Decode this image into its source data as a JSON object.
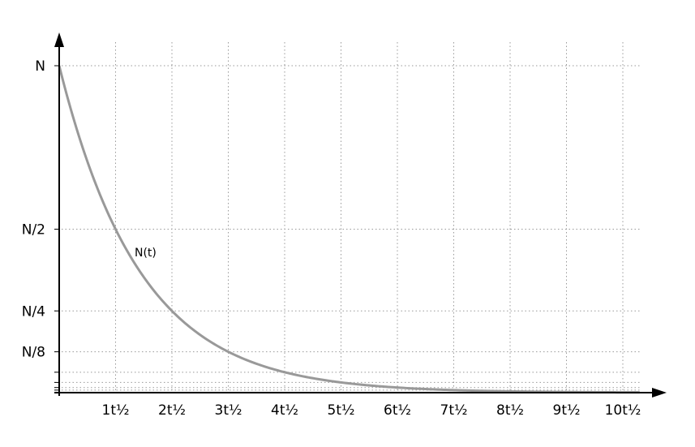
{
  "chart_data": {
    "type": "line",
    "series": [
      {
        "name": "N(t)",
        "x": [
          0,
          1,
          2,
          3,
          4,
          5,
          6,
          7,
          8,
          9,
          10
        ],
        "values": [
          1,
          0.5,
          0.25,
          0.125,
          0.0625,
          0.03125,
          0.015625,
          0.0078125,
          0.00390625,
          0.001953125,
          0.0009765625
        ],
        "color": "#999999"
      }
    ],
    "x_ticks": [
      {
        "value": 1,
        "label": "1t½"
      },
      {
        "value": 2,
        "label": "2t½"
      },
      {
        "value": 3,
        "label": "3t½"
      },
      {
        "value": 4,
        "label": "4t½"
      },
      {
        "value": 5,
        "label": "5t½"
      },
      {
        "value": 6,
        "label": "6t½"
      },
      {
        "value": 7,
        "label": "7t½"
      },
      {
        "value": 8,
        "label": "8t½"
      },
      {
        "value": 9,
        "label": "9t½"
      },
      {
        "value": 10,
        "label": "10t½"
      }
    ],
    "y_ticks": [
      {
        "value": 1,
        "label": "N"
      },
      {
        "value": 0.5,
        "label": "N/2"
      },
      {
        "value": 0.25,
        "label": "N/4"
      },
      {
        "value": 0.125,
        "label": "N/8"
      },
      {
        "value": 0.0625,
        "label": ""
      },
      {
        "value": 0.03125,
        "label": ""
      },
      {
        "value": 0.015625,
        "label": ""
      },
      {
        "value": 0.0078125,
        "label": ""
      }
    ],
    "xlabel": "",
    "ylabel": "",
    "xlim": [
      0,
      10.3
    ],
    "ylim": [
      0,
      1
    ],
    "grid": "dotted",
    "axis_color": "#000000",
    "grid_color": "#999999"
  }
}
